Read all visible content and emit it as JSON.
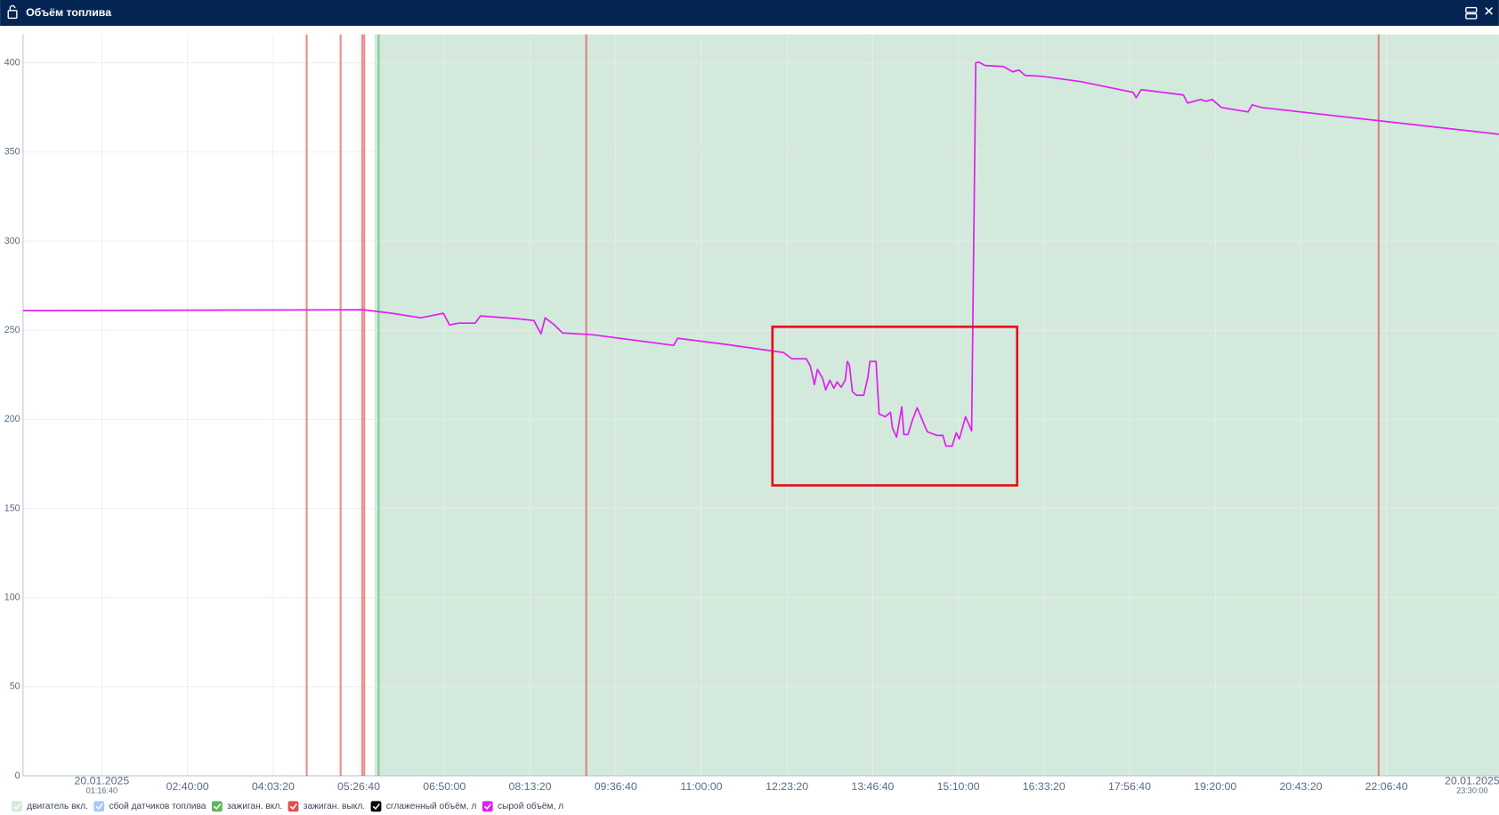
{
  "window": {
    "title": "Объём топлива"
  },
  "chart_data": {
    "type": "line",
    "xlim": [
      "00:00",
      "23:56"
    ],
    "ylim": [
      0,
      416
    ],
    "yticks": [
      0,
      50,
      100,
      150,
      200,
      250,
      300,
      350,
      400
    ],
    "xticks": [
      "02:40:00",
      "04:03:20",
      "05:26:40",
      "06:50:00",
      "08:13:20",
      "09:36:40",
      "11:00:00",
      "12:23:20",
      "13:46:40",
      "15:10:00",
      "16:33:20",
      "17:56:40",
      "19:20:00",
      "20:43:20",
      "22:06:40"
    ],
    "edge_ticks": {
      "date": "20.01.2025",
      "start": "01:16:40",
      "end": "23:30:00"
    },
    "grid": true,
    "x": [
      "00:00",
      "05:31",
      "05:59",
      "06:27",
      "06:49",
      "06:55",
      "07:04",
      "07:20",
      "07:25",
      "08:00",
      "08:17",
      "08:24",
      "08:28",
      "08:37",
      "08:45",
      "09:14",
      "10:33",
      "10:37",
      "11:25",
      "12:20",
      "12:28",
      "12:35",
      "12:42",
      "12:46",
      "12:50",
      "12:53",
      "12:58",
      "13:01",
      "13:05",
      "13:09",
      "13:12",
      "13:16",
      "13:20",
      "13:22",
      "13:24",
      "13:27",
      "13:31",
      "13:38",
      "13:42",
      "13:44",
      "13:50",
      "13:53",
      "13:59",
      "14:04",
      "14:06",
      "14:10",
      "14:15",
      "14:17",
      "14:21",
      "14:25",
      "14:30",
      "14:38",
      "14:40",
      "14:49",
      "14:55",
      "14:58",
      "15:04",
      "15:08",
      "15:11",
      "15:17",
      "15:23",
      "15:27",
      "15:30",
      "15:36",
      "15:54",
      "16:03",
      "16:09",
      "16:15",
      "16:31",
      "17:09",
      "18:00",
      "18:03",
      "18:08",
      "18:49",
      "18:53",
      "19:06",
      "19:11",
      "19:17",
      "19:26",
      "19:52",
      "19:56",
      "20:05",
      "23:56"
    ],
    "layers": [
      {
        "kind": "band",
        "name": "двигатель вкл.",
        "color": "#d3e9dc",
        "ranges": [
          [
            "05:42",
            "23:56"
          ]
        ]
      },
      {
        "kind": "band",
        "name": "сбой датчиков топлива",
        "color": "#a9c8f5",
        "ranges": []
      },
      {
        "kind": "event",
        "name": "зажиган. вкл.",
        "color": "#5cb85c",
        "x": [
          "05:46"
        ]
      },
      {
        "kind": "event",
        "name": "зажиган. выкл.",
        "color": "#e0524f",
        "x": [
          "04:36",
          "05:09",
          "05:30",
          "05:32",
          "09:08",
          "21:59"
        ]
      },
      {
        "kind": "line",
        "name": "сглаженный объём, л",
        "color": "#000000"
      },
      {
        "kind": "line",
        "name": "сырой объём, л",
        "color": "#e020f0",
        "values": [
          261,
          261.5,
          259.5,
          257,
          259.5,
          253,
          254,
          254,
          258,
          256.5,
          255.5,
          248,
          257,
          253,
          248.5,
          247.5,
          241.5,
          245.5,
          242,
          237.5,
          234,
          234,
          234,
          230,
          219.5,
          228,
          223,
          216.5,
          222,
          217.5,
          221,
          218,
          222,
          232.5,
          230.5,
          215.5,
          213.5,
          213.5,
          223.5,
          232.5,
          232.5,
          203,
          201.5,
          204,
          195,
          190,
          207,
          191.5,
          191.5,
          199,
          206.5,
          195.5,
          193,
          191,
          191,
          185,
          185,
          192.5,
          189,
          201.5,
          193.5,
          400,
          400.5,
          398.5,
          398,
          395,
          396,
          393,
          392.5,
          389.5,
          383.5,
          380.5,
          385,
          382,
          377.5,
          379.5,
          378.5,
          379.5,
          375,
          372.5,
          376.5,
          375,
          360
        ]
      }
    ]
  }
}
